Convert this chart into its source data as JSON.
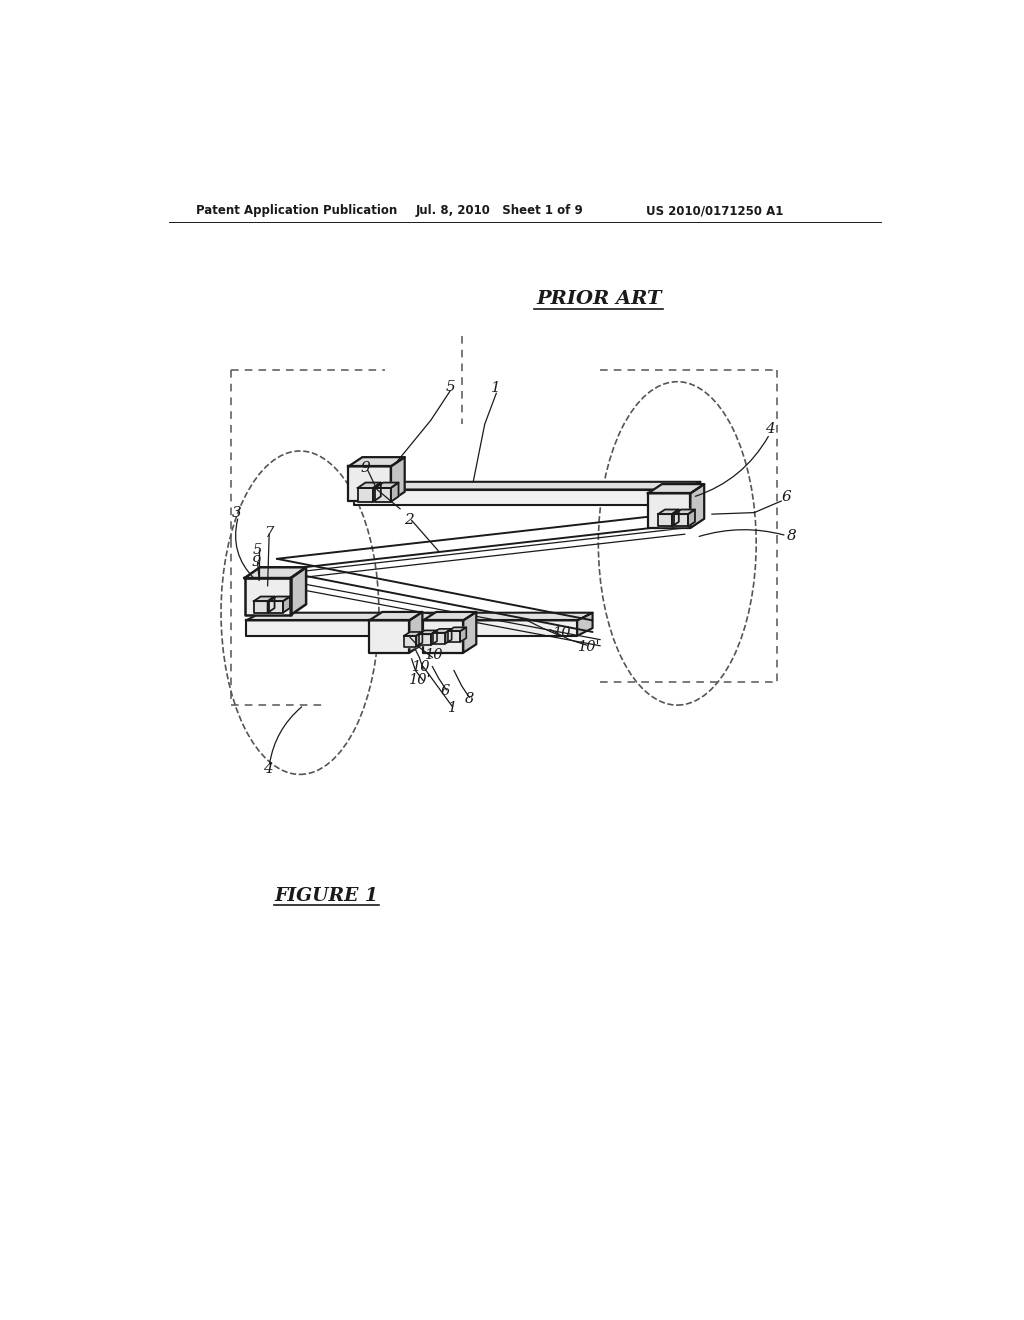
{
  "bg_color": "#ffffff",
  "header_left": "Patent Application Publication",
  "header_mid": "Jul. 8, 2010   Sheet 1 of 9",
  "header_right": "US 2010/0171250 A1",
  "prior_art_label": "PRIOR ART",
  "figure_label": "FIGURE 1",
  "text_color": "#1a1a1a",
  "line_color": "#1a1a1a",
  "dashed_color": "#555555",
  "fill_light": "#f5f5f5",
  "fill_mid": "#e8e8e8",
  "fill_dark": "#d5d5d5"
}
